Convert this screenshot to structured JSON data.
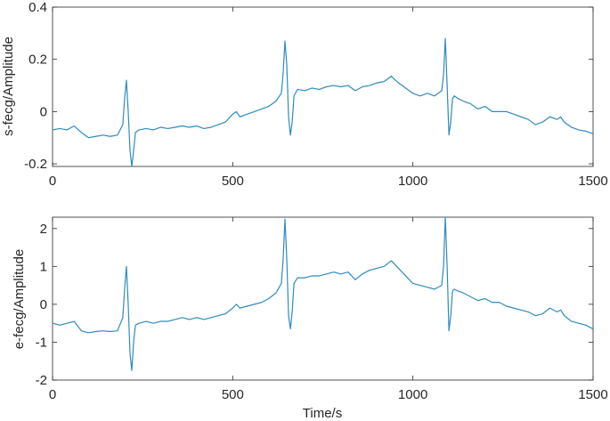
{
  "chart_data": [
    {
      "type": "line",
      "ylabel": "s-fecg/Amplitude",
      "xlabel": "",
      "xlim": [
        0,
        1500
      ],
      "ylim": [
        -0.21,
        0.4
      ],
      "xticks": [
        0,
        500,
        1000,
        1500
      ],
      "xtick_labels": [
        "0",
        "500",
        "1000",
        "1500"
      ],
      "yticks": [
        -0.2,
        0,
        0.2,
        0.4
      ],
      "ytick_labels": [
        "-0.2",
        "0",
        "0.2",
        "0.4"
      ],
      "grid": false,
      "color": "#2e8bbf",
      "series": [
        {
          "x": [
            0,
            20,
            40,
            60,
            80,
            100,
            120,
            140,
            160,
            180,
            195,
            200,
            205,
            210,
            215,
            220,
            225,
            230,
            240,
            260,
            280,
            300,
            320,
            340,
            360,
            380,
            400,
            420,
            440,
            460,
            480,
            500,
            510,
            520,
            540,
            560,
            580,
            600,
            620,
            635,
            640,
            645,
            650,
            655,
            660,
            665,
            670,
            680,
            700,
            720,
            740,
            760,
            780,
            800,
            820,
            840,
            860,
            880,
            900,
            920,
            940,
            960,
            980,
            1000,
            1020,
            1040,
            1060,
            1080,
            1085,
            1090,
            1095,
            1100,
            1105,
            1110,
            1115,
            1125,
            1140,
            1160,
            1180,
            1200,
            1220,
            1240,
            1260,
            1280,
            1300,
            1320,
            1340,
            1360,
            1380,
            1400,
            1410,
            1420,
            1440,
            1460,
            1480,
            1500
          ],
          "y": [
            -0.07,
            -0.065,
            -0.07,
            -0.055,
            -0.08,
            -0.1,
            -0.095,
            -0.09,
            -0.095,
            -0.09,
            -0.05,
            0.05,
            0.12,
            0.0,
            -0.15,
            -0.21,
            -0.15,
            -0.08,
            -0.07,
            -0.065,
            -0.07,
            -0.06,
            -0.065,
            -0.06,
            -0.055,
            -0.06,
            -0.055,
            -0.065,
            -0.06,
            -0.05,
            -0.04,
            -0.01,
            0.0,
            -0.02,
            -0.01,
            0.0,
            0.01,
            0.02,
            0.04,
            0.07,
            0.15,
            0.27,
            0.18,
            -0.02,
            -0.09,
            -0.04,
            0.06,
            0.085,
            0.08,
            0.09,
            0.085,
            0.095,
            0.1,
            0.095,
            0.1,
            0.08,
            0.095,
            0.1,
            0.11,
            0.115,
            0.135,
            0.11,
            0.09,
            0.07,
            0.06,
            0.07,
            0.06,
            0.08,
            0.14,
            0.28,
            0.1,
            -0.09,
            -0.04,
            0.05,
            0.06,
            0.05,
            0.04,
            0.03,
            0.01,
            0.02,
            0.0,
            0.0,
            0.0,
            -0.01,
            -0.02,
            -0.03,
            -0.05,
            -0.04,
            -0.02,
            -0.03,
            -0.02,
            -0.04,
            -0.06,
            -0.07,
            -0.075,
            -0.085
          ]
        }
      ]
    },
    {
      "type": "line",
      "ylabel": "e-fecg/Amplitude",
      "xlabel": "Time/s",
      "xlim": [
        0,
        1500
      ],
      "ylim": [
        -2,
        2.3
      ],
      "xticks": [
        0,
        500,
        1000,
        1500
      ],
      "xtick_labels": [
        "0",
        "500",
        "1000",
        "1500"
      ],
      "yticks": [
        -2,
        -1,
        0,
        1,
        2
      ],
      "ytick_labels": [
        "-2",
        "-1",
        "0",
        "1",
        "2"
      ],
      "grid": false,
      "color": "#2e8bbf",
      "series": [
        {
          "x": [
            0,
            20,
            40,
            60,
            80,
            100,
            120,
            140,
            160,
            180,
            195,
            200,
            205,
            210,
            215,
            220,
            225,
            230,
            240,
            260,
            280,
            300,
            320,
            340,
            360,
            380,
            400,
            420,
            440,
            460,
            480,
            500,
            510,
            520,
            540,
            560,
            580,
            600,
            620,
            635,
            640,
            645,
            650,
            655,
            660,
            665,
            670,
            680,
            700,
            720,
            740,
            760,
            780,
            800,
            820,
            840,
            860,
            880,
            900,
            920,
            940,
            960,
            980,
            1000,
            1020,
            1040,
            1060,
            1080,
            1085,
            1090,
            1095,
            1100,
            1105,
            1110,
            1115,
            1125,
            1140,
            1160,
            1180,
            1200,
            1220,
            1240,
            1260,
            1280,
            1300,
            1320,
            1340,
            1360,
            1380,
            1400,
            1410,
            1420,
            1440,
            1460,
            1480,
            1500
          ],
          "y": [
            -0.5,
            -0.55,
            -0.5,
            -0.45,
            -0.7,
            -0.75,
            -0.72,
            -0.7,
            -0.72,
            -0.7,
            -0.35,
            0.4,
            1.0,
            0.0,
            -1.3,
            -1.75,
            -1.0,
            -0.55,
            -0.5,
            -0.45,
            -0.5,
            -0.45,
            -0.45,
            -0.4,
            -0.35,
            -0.4,
            -0.35,
            -0.4,
            -0.35,
            -0.3,
            -0.25,
            -0.1,
            0.0,
            -0.1,
            -0.05,
            0.0,
            0.05,
            0.15,
            0.3,
            0.55,
            1.2,
            2.25,
            1.2,
            -0.3,
            -0.65,
            -0.2,
            0.55,
            0.7,
            0.7,
            0.75,
            0.75,
            0.8,
            0.85,
            0.8,
            0.85,
            0.65,
            0.8,
            0.9,
            0.95,
            1.0,
            1.15,
            0.95,
            0.75,
            0.55,
            0.5,
            0.45,
            0.4,
            0.5,
            1.0,
            2.3,
            1.0,
            -0.7,
            -0.3,
            0.35,
            0.4,
            0.35,
            0.3,
            0.2,
            0.1,
            0.15,
            0.05,
            0.05,
            -0.05,
            -0.1,
            -0.15,
            -0.2,
            -0.3,
            -0.25,
            -0.1,
            -0.2,
            -0.15,
            -0.3,
            -0.45,
            -0.5,
            -0.55,
            -0.65
          ]
        }
      ]
    }
  ]
}
